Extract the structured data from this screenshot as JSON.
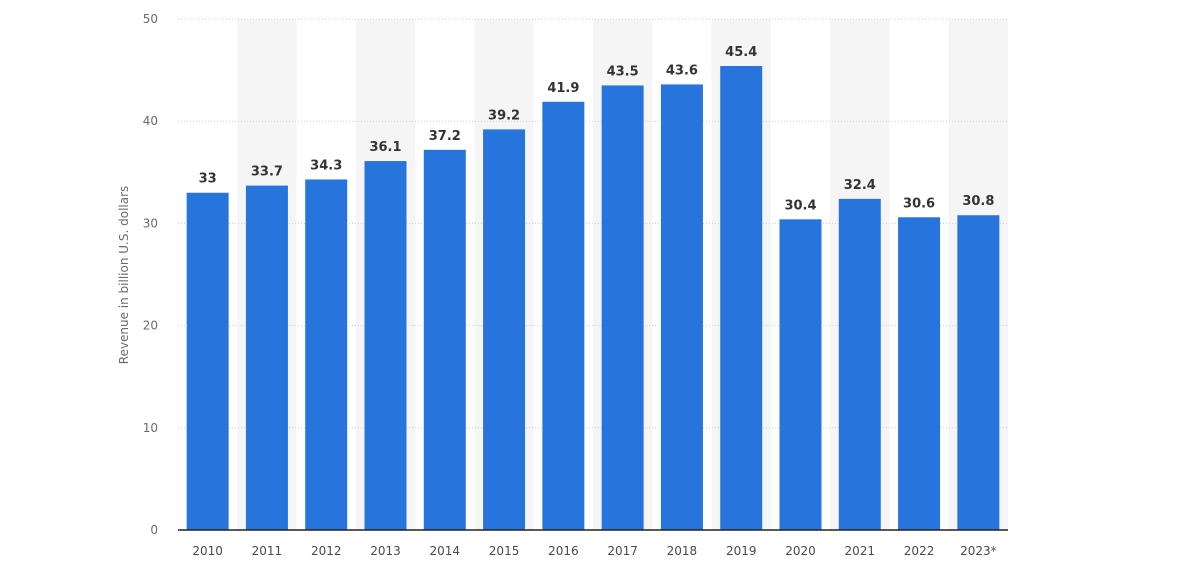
{
  "chart_data": {
    "type": "bar",
    "title": "",
    "xlabel": "",
    "ylabel": "Revenue in billion U.S. dollars",
    "categories": [
      "2010",
      "2011",
      "2012",
      "2013",
      "2014",
      "2015",
      "2016",
      "2017",
      "2018",
      "2019",
      "2020",
      "2021",
      "2022",
      "2023*"
    ],
    "values": [
      33,
      33.7,
      34.3,
      36.1,
      37.2,
      39.2,
      41.9,
      43.5,
      43.6,
      45.4,
      30.4,
      32.4,
      30.6,
      30.8
    ],
    "value_labels": [
      "33",
      "33.7",
      "34.3",
      "36.1",
      "37.2",
      "39.2",
      "41.9",
      "43.5",
      "43.6",
      "45.4",
      "30.4",
      "32.4",
      "30.6",
      "30.8"
    ],
    "ylim": [
      0,
      50
    ],
    "yticks": [
      "0",
      "10",
      "20",
      "30",
      "40",
      "50"
    ],
    "grid": true,
    "legend": "none",
    "colors": {
      "bar": "#2775dc",
      "band": "#f5f5f5",
      "grid": "#cfcfcf",
      "axis": "#222222"
    }
  }
}
